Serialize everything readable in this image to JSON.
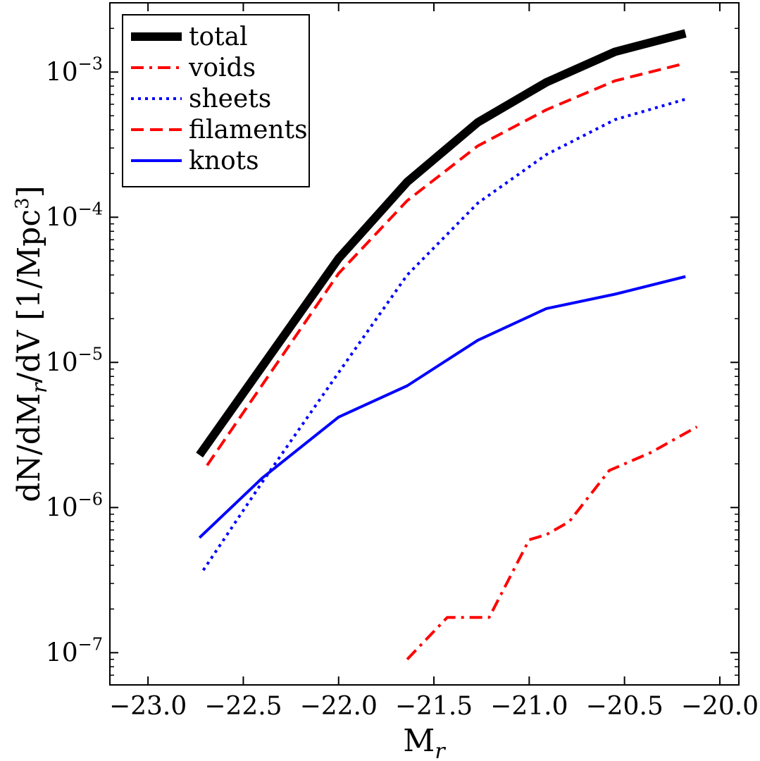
{
  "chart_data": {
    "type": "line",
    "title": "",
    "xlabel": "M",
    "xlabel_sub": "r",
    "ylabel_parts": [
      "dN/dM",
      "r",
      "/dV [1/Mpc",
      "3",
      "]"
    ],
    "xlim": [
      -23.2,
      -19.9
    ],
    "ylim": [
      6e-08,
      0.003
    ],
    "yscale": "log",
    "x_ticks": [
      -23.0,
      -22.5,
      -22.0,
      -21.5,
      -21.0,
      -20.5,
      -20.0
    ],
    "x_tick_labels": [
      "−23.0",
      "−22.5",
      "−22.0",
      "−21.5",
      "−21.0",
      "−20.5",
      "−20.0"
    ],
    "y_ticks": [
      {
        "value": 1e-07,
        "base": "10",
        "exp": "−7"
      },
      {
        "value": 1e-06,
        "base": "10",
        "exp": "−6"
      },
      {
        "value": 1e-05,
        "base": "10",
        "exp": "−5"
      },
      {
        "value": 0.0001,
        "base": "10",
        "exp": "−4"
      },
      {
        "value": 0.001,
        "base": "10",
        "exp": "−3"
      }
    ],
    "legend_position": "upper-left",
    "series": [
      {
        "name": "total",
        "color": "#000000",
        "style": "solid",
        "weight": "thick",
        "x": [
          -22.73,
          -22.0,
          -21.64,
          -21.27,
          -20.91,
          -20.55,
          -20.18
        ],
        "y": [
          2.3e-06,
          5.2e-05,
          0.000175,
          0.00045,
          0.00085,
          0.00138,
          0.00185
        ]
      },
      {
        "name": "voids",
        "color": "#ff0000",
        "style": "dashdot",
        "weight": "normal",
        "x": [
          -21.64,
          -21.43,
          -21.21,
          -21.0,
          -20.91,
          -20.79,
          -20.58,
          -20.36,
          -20.12
        ],
        "y": [
          9e-08,
          1.75e-07,
          1.75e-07,
          6e-07,
          6.5e-07,
          8e-07,
          1.8e-06,
          2.4e-06,
          3.6e-06
        ]
      },
      {
        "name": "sheets",
        "color": "#0000ff",
        "style": "dotted",
        "weight": "normal",
        "x": [
          -22.71,
          -22.4,
          -22.0,
          -21.64,
          -21.27,
          -20.91,
          -20.55,
          -20.18
        ],
        "y": [
          3.7e-07,
          1.5e-06,
          8.5e-06,
          4e-05,
          0.000125,
          0.00027,
          0.00047,
          0.00065
        ]
      },
      {
        "name": "filaments",
        "color": "#ff0000",
        "style": "dashed",
        "weight": "normal",
        "x": [
          -22.69,
          -22.0,
          -21.64,
          -21.27,
          -20.91,
          -20.55,
          -20.18
        ],
        "y": [
          1.95e-06,
          4.1e-05,
          0.00013,
          0.00031,
          0.00055,
          0.00087,
          0.00115
        ]
      },
      {
        "name": "knots",
        "color": "#0000ff",
        "style": "solid",
        "weight": "normal",
        "x": [
          -22.73,
          -22.4,
          -22.0,
          -21.64,
          -21.27,
          -20.91,
          -20.55,
          -20.18
        ],
        "y": [
          6.2e-07,
          1.6e-06,
          4.2e-06,
          6.9e-06,
          1.42e-05,
          2.35e-05,
          2.95e-05,
          3.9e-05
        ]
      }
    ]
  }
}
